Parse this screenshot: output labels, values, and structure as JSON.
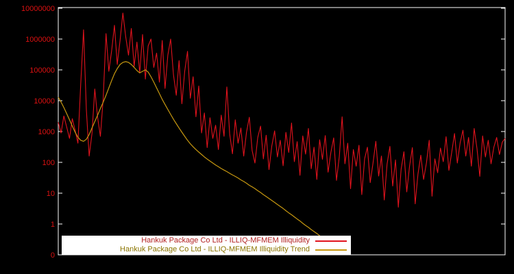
{
  "chart_data": {
    "type": "line",
    "title": "",
    "xlabel": "",
    "ylabel": "",
    "y_scale": "log",
    "ylim": [
      0.1,
      10000000
    ],
    "grid": false,
    "legend_position": "bottom",
    "colors": {
      "background": "#000000",
      "border": "#ffffff",
      "tick_labels": "#dd1111"
    },
    "yticks": [
      {
        "label": "10000000",
        "value": 10000000
      },
      {
        "label": "1000000",
        "value": 1000000
      },
      {
        "label": "100000",
        "value": 100000
      },
      {
        "label": "10000",
        "value": 10000
      },
      {
        "label": "1000",
        "value": 1000
      },
      {
        "label": "100",
        "value": 100
      },
      {
        "label": "10",
        "value": 10
      },
      {
        "label": "1",
        "value": 1
      },
      {
        "label": "0",
        "value": 0.1
      }
    ],
    "series": [
      {
        "name": "Hankuk Package Co Ltd - ILLIQ-MFMEM Illiquidity",
        "color": "#e1131d",
        "legend_text_color": "#b22222",
        "values": [
          2000,
          900,
          3200,
          1400,
          600,
          2600,
          1100,
          420,
          35000,
          2000000,
          5200,
          160,
          850,
          24000,
          2900,
          700,
          12000,
          1500000,
          90000,
          420000,
          2800000,
          150000,
          900000,
          7000000,
          1200000,
          300000,
          2200000,
          130000,
          800000,
          80000,
          1400000,
          50000,
          600000,
          1000000,
          120000,
          350000,
          40000,
          900000,
          25000,
          300000,
          1000000,
          70000,
          15000,
          200000,
          8000,
          90000,
          400000,
          12000,
          60000,
          3000,
          30000,
          900,
          4000,
          300,
          2800,
          600,
          1600,
          260,
          3400,
          700,
          28000,
          850,
          190,
          2400,
          420,
          1300,
          160,
          950,
          2900,
          240,
          95,
          640,
          1500,
          130,
          760,
          58,
          340,
          1050,
          150,
          520,
          78,
          940,
          210,
          1900,
          105,
          470,
          38,
          720,
          185,
          1250,
          62,
          310,
          28,
          540,
          125,
          740,
          48,
          210,
          620,
          26,
          155,
          3000,
          90,
          420,
          14,
          260,
          75,
          360,
          9,
          130,
          310,
          22,
          95,
          480,
          36,
          160,
          6,
          88,
          330,
          17,
          120,
          3.5,
          60,
          220,
          11,
          75,
          300,
          4.5,
          42,
          170,
          28,
          95,
          520,
          8,
          130,
          46,
          290,
          105,
          680,
          55,
          210,
          860,
          95,
          430,
          1100,
          160,
          640,
          75,
          1250,
          280,
          35,
          720,
          150,
          520,
          90,
          310,
          640,
          180,
          450,
          600
        ]
      },
      {
        "name": "Hankuk Package Co Ltd - ILLIQ-MFMEM Illiquidity Trend",
        "color": "#c79810",
        "legend_text_color": "#8b7500",
        "values": [
          13000,
          9000,
          6000,
          3800,
          2400,
          1500,
          950,
          650,
          520,
          480,
          560,
          800,
          1300,
          2100,
          3400,
          5600,
          9000,
          15000,
          26000,
          45000,
          75000,
          110000,
          150000,
          175000,
          185000,
          175000,
          150000,
          120000,
          95000,
          80000,
          90000,
          100000,
          85000,
          60000,
          40000,
          26000,
          17000,
          11000,
          7500,
          5200,
          3600,
          2500,
          1800,
          1300,
          950,
          700,
          520,
          400,
          320,
          260,
          215,
          180,
          150,
          128,
          110,
          95,
          82,
          72,
          63,
          56,
          50,
          44,
          39,
          35,
          31,
          27,
          24,
          21,
          18,
          16,
          14,
          12,
          10.5,
          9,
          7.8,
          6.7,
          5.8,
          5.0,
          4.3,
          3.7,
          3.2,
          2.7,
          2.3,
          2.0,
          1.7,
          1.45,
          1.25,
          1.05,
          0.9,
          0.78,
          0.66,
          0.57,
          0.49,
          0.42,
          0.36
        ]
      }
    ]
  },
  "legend": {
    "rows": [
      {
        "label": "Hankuk Package Co Ltd - ILLIQ-MFMEM Illiquidity"
      },
      {
        "label": "Hankuk Package Co Ltd - ILLIQ-MFMEM Illiquidity Trend"
      }
    ]
  }
}
